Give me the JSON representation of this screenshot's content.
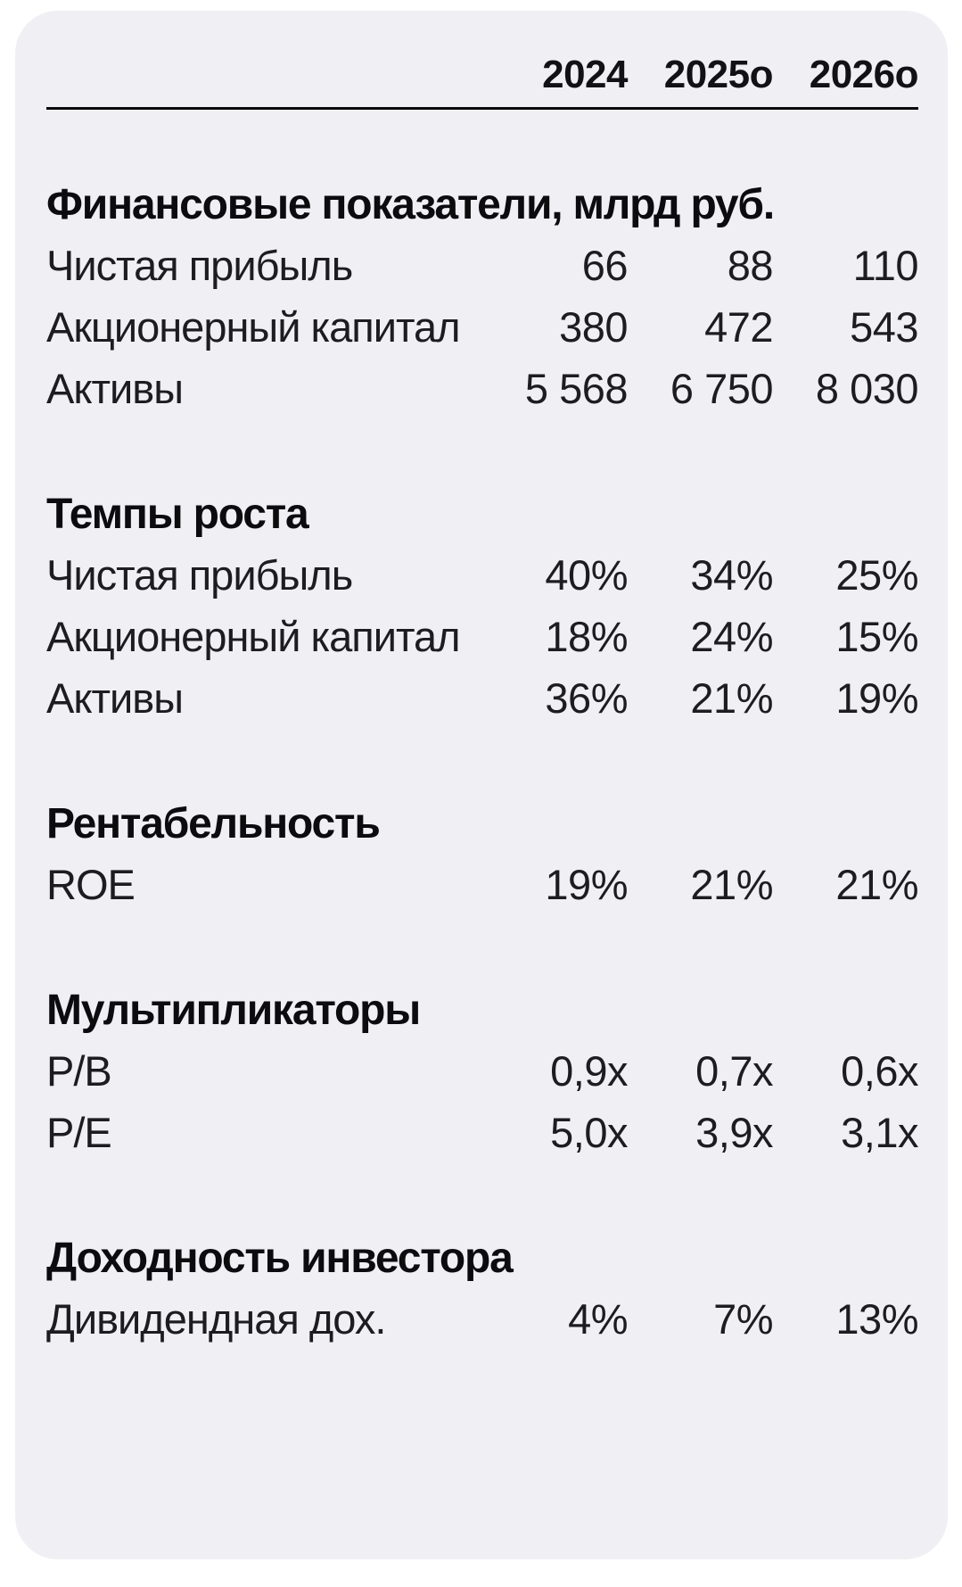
{
  "colors": {
    "page_background": "#ffffff",
    "card_background": "#f0f0f4",
    "text_primary": "#1c1c21",
    "text_bold": "#0c0c0f",
    "header_rule": "#0a0a0c"
  },
  "chart_data": {
    "type": "table",
    "title": "",
    "columns": [
      "2024",
      "2025о",
      "2026о"
    ],
    "sections": [
      {
        "title": "Финансовые показатели, млрд руб.",
        "rows": [
          {
            "label": "Чистая прибыль",
            "values": [
              "66",
              "88",
              "110"
            ]
          },
          {
            "label": "Акционерный капитал",
            "values": [
              "380",
              "472",
              "543"
            ]
          },
          {
            "label": "Активы",
            "values": [
              "5 568",
              "6 750",
              "8 030"
            ]
          }
        ]
      },
      {
        "title": "Темпы роста",
        "rows": [
          {
            "label": "Чистая прибыль",
            "values": [
              "40%",
              "34%",
              "25%"
            ]
          },
          {
            "label": "Акционерный капитал",
            "values": [
              "18%",
              "24%",
              "15%"
            ]
          },
          {
            "label": "Активы",
            "values": [
              "36%",
              "21%",
              "19%"
            ]
          }
        ]
      },
      {
        "title": "Рентабельность",
        "rows": [
          {
            "label": "ROE",
            "values": [
              "19%",
              "21%",
              "21%"
            ]
          }
        ]
      },
      {
        "title": "Мультипликаторы",
        "rows": [
          {
            "label": "P/B",
            "values": [
              "0,9x",
              "0,7x",
              "0,6x"
            ]
          },
          {
            "label": "P/E",
            "values": [
              "5,0x",
              "3,9x",
              "3,1x"
            ]
          }
        ]
      },
      {
        "title": "Доходность инвестора",
        "rows": [
          {
            "label": "Дивидендная дох.",
            "values": [
              "4%",
              "7%",
              "13%"
            ]
          }
        ]
      }
    ]
  }
}
